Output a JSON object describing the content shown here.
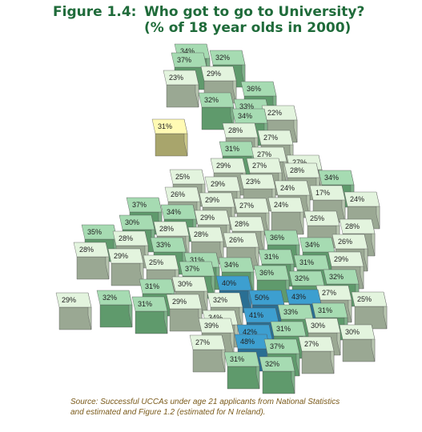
{
  "title": {
    "figure": "Figure 1.4:",
    "question": "Who got to go to University?",
    "subtitle": "(% of 18 year olds in 2000)"
  },
  "cells": [
    "34%",
    "32%",
    "37%",
    "23%",
    "29%",
    "36%",
    "32%",
    "33%",
    "22%",
    "34%",
    "31%",
    "28%",
    "27%",
    "31%",
    "27%",
    "27%",
    "29%",
    "27%",
    "28%",
    "34%",
    "25%",
    "29%",
    "23%",
    "24%",
    "17%",
    "24%",
    "26%",
    "29%",
    "27%",
    "24%",
    "37%",
    "34%",
    "29%",
    "28%",
    "25%",
    "28%",
    "30%",
    "28%",
    "28%",
    "26%",
    "36%",
    "34%",
    "26%",
    "35%",
    "28%",
    "33%",
    "28%",
    "29%",
    "25%",
    "31%",
    "34%",
    "31%",
    "31%",
    "29%",
    "37%",
    "36%",
    "32%",
    "32%",
    "31%",
    "30%",
    "40%",
    "27%",
    "25%",
    "29%",
    "32%",
    "31%",
    "29%",
    "32%",
    "50%",
    "43%",
    "31%",
    "33%",
    "34%",
    "41%",
    "30%",
    "39%",
    "31%",
    "42%",
    "30%",
    "48%",
    "27%",
    "37%",
    "27%",
    "31%",
    "32%"
  ],
  "source": [
    "Source: Successful UCCAs under age 21 applicants from National Statistics",
    "and estimated and Figure 1.2 (estimated for N Ireland)."
  ]
}
